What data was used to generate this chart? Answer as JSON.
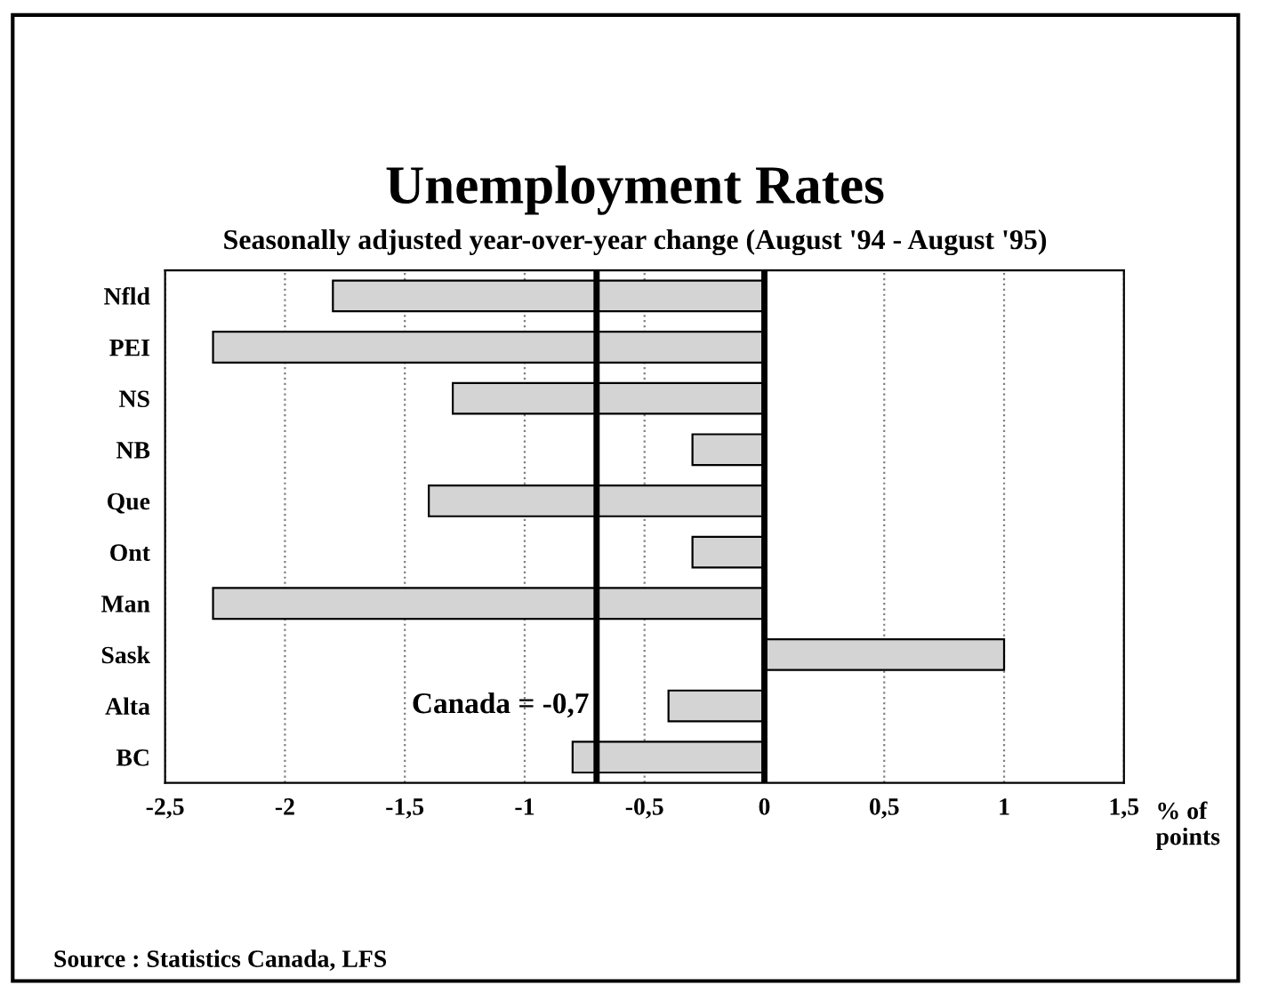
{
  "chart_data": {
    "type": "bar",
    "orientation": "horizontal",
    "title": "Unemployment Rates",
    "subtitle": "Seasonally adjusted year-over-year change (August '94 - August '95)",
    "xlabel": "% of points",
    "categories": [
      "Nfld",
      "PEI",
      "NS",
      "NB",
      "Que",
      "Ont",
      "Man",
      "Sask",
      "Alta",
      "BC"
    ],
    "values": [
      -1.8,
      -2.3,
      -1.3,
      -0.3,
      -1.4,
      -0.3,
      -2.3,
      1.0,
      -0.4,
      -0.8
    ],
    "color": "#d4d4d4",
    "xlim": [
      -2.5,
      1.5
    ],
    "xticks": [
      {
        "value": -2.5,
        "label": "-2,5"
      },
      {
        "value": -2,
        "label": "-2"
      },
      {
        "value": -1.5,
        "label": "-1,5"
      },
      {
        "value": -1,
        "label": "-1"
      },
      {
        "value": -0.5,
        "label": "-0,5"
      },
      {
        "value": 0,
        "label": "0"
      },
      {
        "value": 0.5,
        "label": "0,5"
      },
      {
        "value": 1,
        "label": "1"
      },
      {
        "value": 1.5,
        "label": "1,5"
      }
    ],
    "grid": "x",
    "legend": false,
    "ref_lines": [
      {
        "axis": "x",
        "value": -0.7,
        "label": "Canada = -0,7",
        "color": "#000000"
      },
      {
        "axis": "x",
        "value": 0,
        "color": "#000000"
      }
    ],
    "annotations": [
      "Source : Statistics Canada, LFS"
    ]
  }
}
